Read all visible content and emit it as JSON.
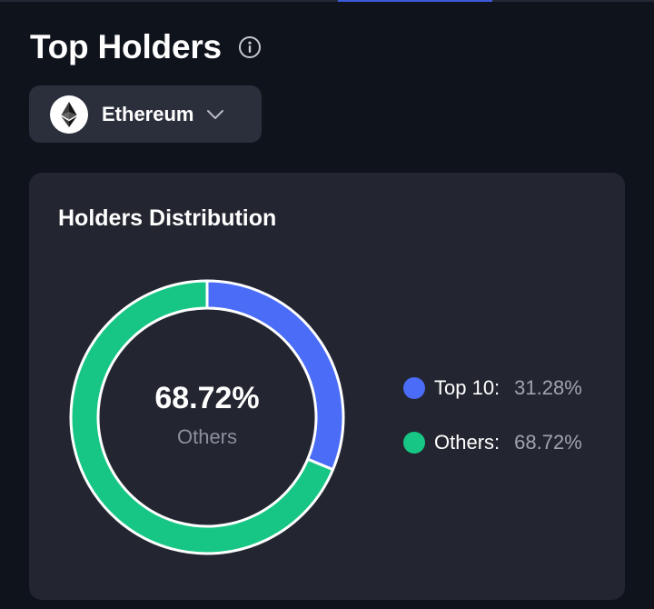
{
  "header": {
    "title": "Top Holders",
    "info_icon": "info-circle-icon"
  },
  "chain_selector": {
    "selected": "Ethereum",
    "logo_icon": "ethereum-logo-icon",
    "dropdown_icon": "chevron-down-icon"
  },
  "distribution": {
    "title": "Holders Distribution",
    "center_value": "68.72%",
    "center_label": "Others",
    "segments": [
      {
        "label": "Top 10:",
        "value_text": "31.28%",
        "percent": 31.28,
        "color": "#4a6cf7"
      },
      {
        "label": "Others:",
        "value_text": "68.72%",
        "percent": 68.72,
        "color": "#17c684"
      }
    ]
  },
  "colors": {
    "background": "#0f131c",
    "card": "#232530",
    "select": "#2b2f3b",
    "accent": "#3b5bdb"
  }
}
